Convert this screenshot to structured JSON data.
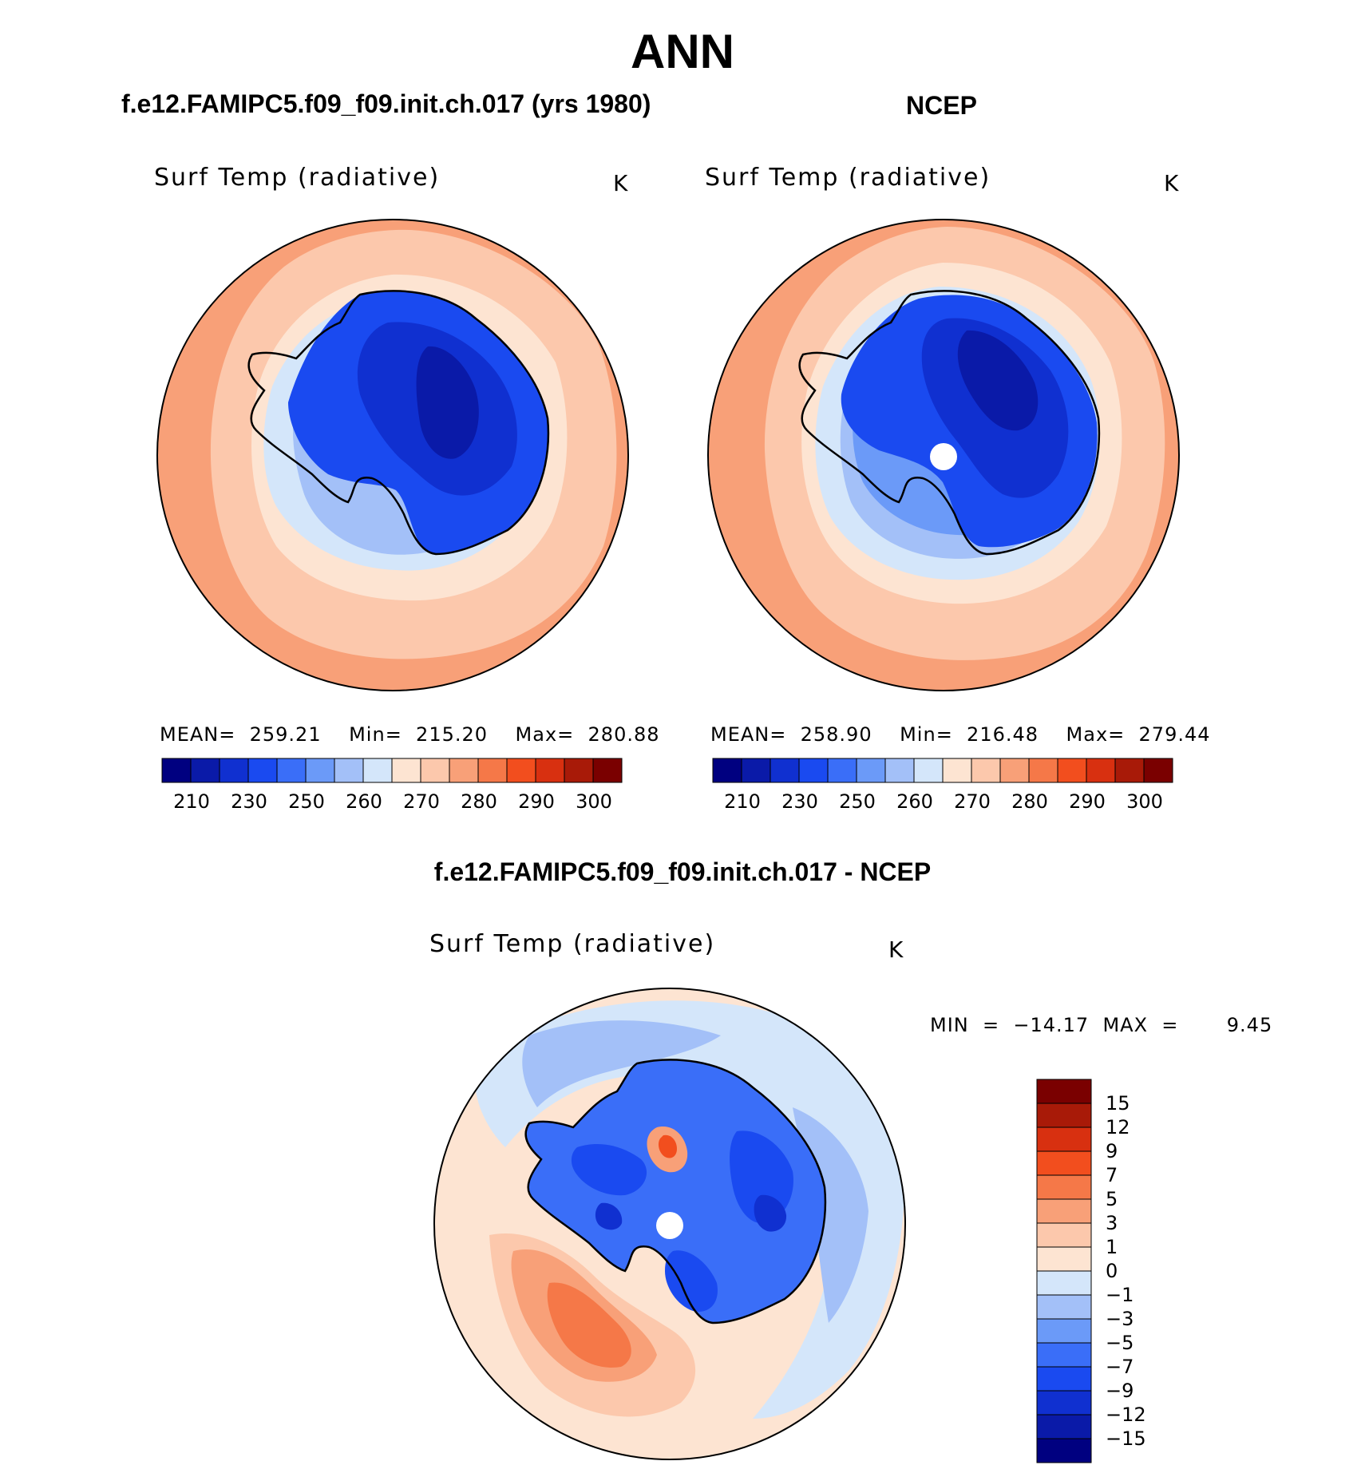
{
  "figure": {
    "season": "ANN",
    "panels": [
      {
        "title": "f.e12.FAMIPC5.f09_f09.init.ch.017 (yrs 1980)",
        "variable": "Surf Temp (radiative)",
        "units": "K",
        "stats": {
          "mean": "259.21",
          "min": "215.20",
          "max": "280.88"
        },
        "stats_line": "MEAN=  259.21    Min=  215.20    Max=  280.88"
      },
      {
        "title": "NCEP",
        "variable": "Surf Temp (radiative)",
        "units": "K",
        "stats": {
          "mean": "258.90",
          "min": "216.48",
          "max": "279.44"
        },
        "stats_line": "MEAN=  258.90    Min=  216.48    Max=  279.44"
      },
      {
        "title": "f.e12.FAMIPC5.f09_f09.init.ch.017 - NCEP",
        "variable": "Surf Temp (radiative)",
        "units": "K",
        "stats": {
          "min": "−14.17",
          "max": "9.45"
        },
        "stats_line": "MIN  =  −14.17  MAX  =       9.45"
      }
    ]
  },
  "chart_data": [
    {
      "type": "heatmap",
      "projection": "south-polar-stereographic",
      "title": "f.e12.FAMIPC5.f09_f09.init.ch.017 (yrs 1980)",
      "variable": "Surf Temp (radiative)",
      "units": "K",
      "mean": 259.21,
      "min": 215.2,
      "max": 280.88,
      "colorbar": {
        "orientation": "horizontal",
        "tick_labels": [
          "210",
          "230",
          "250",
          "260",
          "270",
          "280",
          "290",
          "300"
        ],
        "colors": [
          "#000080",
          "#0a1aa8",
          "#1030d0",
          "#1a4af0",
          "#3a6ef8",
          "#6b9af8",
          "#a3c0f8",
          "#d4e6fa",
          "#fde4d2",
          "#fcc8ac",
          "#f8a078",
          "#f57848",
          "#f24e1e",
          "#d83010",
          "#a81a08",
          "#7a0000"
        ]
      }
    },
    {
      "type": "heatmap",
      "projection": "south-polar-stereographic",
      "title": "NCEP",
      "variable": "Surf Temp (radiative)",
      "units": "K",
      "mean": 258.9,
      "min": 216.48,
      "max": 279.44,
      "colorbar": {
        "orientation": "horizontal",
        "tick_labels": [
          "210",
          "230",
          "250",
          "260",
          "270",
          "280",
          "290",
          "300"
        ],
        "colors": [
          "#000080",
          "#0a1aa8",
          "#1030d0",
          "#1a4af0",
          "#3a6ef8",
          "#6b9af8",
          "#a3c0f8",
          "#d4e6fa",
          "#fde4d2",
          "#fcc8ac",
          "#f8a078",
          "#f57848",
          "#f24e1e",
          "#d83010",
          "#a81a08",
          "#7a0000"
        ]
      }
    },
    {
      "type": "heatmap",
      "projection": "south-polar-stereographic",
      "title": "f.e12.FAMIPC5.f09_f09.init.ch.017 - NCEP",
      "variable": "Surf Temp (radiative)",
      "units": "K",
      "min": -14.17,
      "max": 9.45,
      "colorbar": {
        "orientation": "vertical",
        "tick_labels": [
          "15",
          "12",
          "9",
          "7",
          "5",
          "3",
          "1",
          "0",
          "−1",
          "−3",
          "−5",
          "−7",
          "−9",
          "−12",
          "−15"
        ],
        "colors": [
          "#7a0000",
          "#a81a08",
          "#d83010",
          "#f24e1e",
          "#f57848",
          "#f8a078",
          "#fcc8ac",
          "#fde4d2",
          "#d4e6fa",
          "#a3c0f8",
          "#6b9af8",
          "#3a6ef8",
          "#1a4af0",
          "#1030d0",
          "#0a1aa8",
          "#000080"
        ]
      }
    }
  ]
}
